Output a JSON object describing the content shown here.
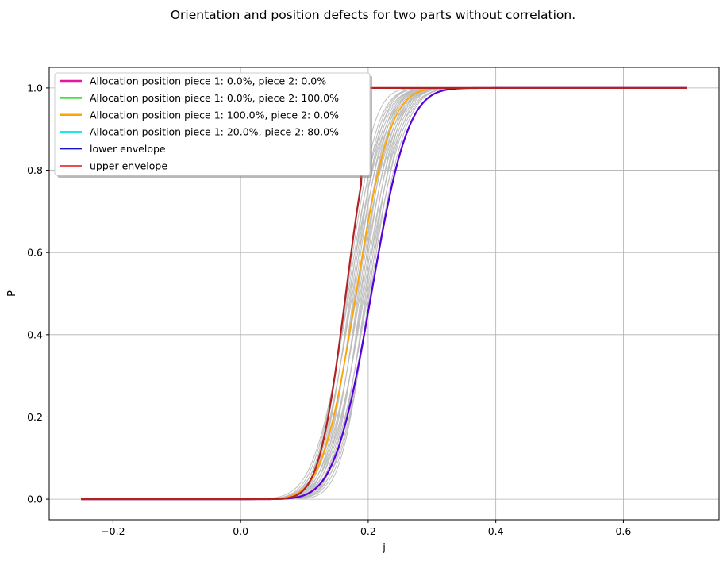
{
  "chart_data": {
    "type": "line",
    "title": "Orientation and position defects for two parts without correlation.",
    "xlabel": "j",
    "ylabel": "P",
    "xlim": [
      -0.3,
      0.75
    ],
    "ylim": [
      -0.05,
      1.05
    ],
    "xticks": [
      -0.2,
      0.0,
      0.2,
      0.4,
      0.6
    ],
    "xtick_labels": [
      "−0.2",
      "0.0",
      "0.2",
      "0.4",
      "0.6"
    ],
    "yticks": [
      0.0,
      0.2,
      0.4,
      0.6,
      0.8,
      1.0
    ],
    "ytick_labels": [
      "0.0",
      "0.2",
      "0.4",
      "0.6",
      "0.8",
      "1.0"
    ],
    "grid": true,
    "legend_position": "upper-left",
    "x_range": [
      -0.25,
      0.7
    ],
    "background_curves": {
      "count": 24,
      "color": "#bdbdbd",
      "mu_range": [
        0.165,
        0.205
      ],
      "sigma_range": [
        0.033,
        0.045
      ]
    },
    "series": [
      {
        "name": "Allocation position piece 1: 0.0%, piece 2: 0.0%",
        "color": "#e6169f",
        "mu": 0.165,
        "sigma": 0.033,
        "upper_step_at": 0.19
      },
      {
        "name": "Allocation position piece 1: 0.0%, piece 2: 100.0%",
        "color": "#22e022",
        "mu": 0.165,
        "sigma": 0.033,
        "upper_step_at": 0.19
      },
      {
        "name": "Allocation position piece 1: 100.0%, piece 2: 0.0%",
        "color": "#ffa500",
        "mu": 0.181,
        "sigma": 0.042
      },
      {
        "name": "Allocation position piece 1: 20.0%, piece 2: 80.0%",
        "color": "#22e6e6",
        "mu": 0.205,
        "sigma": 0.045
      },
      {
        "name": "lower envelope",
        "color": "#1515c8",
        "mu": 0.205,
        "sigma": 0.045
      },
      {
        "name": "upper envelope",
        "color": "#e01515",
        "mu": 0.165,
        "sigma": 0.033,
        "upper_step_at": 0.19
      }
    ],
    "plotted_overlays": [
      {
        "color": "#5500dd",
        "mu": 0.205,
        "sigma": 0.045,
        "width": 2.2
      },
      {
        "color": "#b22222",
        "mu": 0.165,
        "sigma": 0.033,
        "upper_step_at": 0.19,
        "width": 2.2
      }
    ]
  }
}
